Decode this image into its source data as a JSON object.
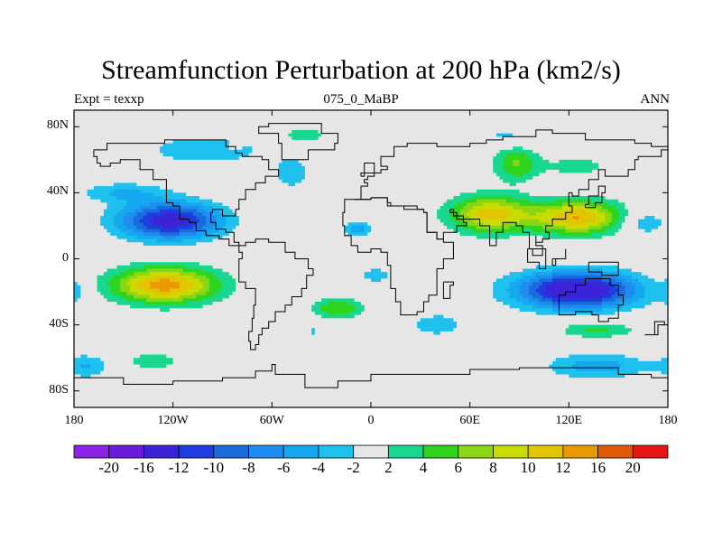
{
  "chart_data": {
    "type": "heatmap",
    "title": "Streamfunction Perturbation at 200 hPa (km2/s)",
    "subtitle_left": "Expt = texxp",
    "subtitle_center": "075_0_MaBP",
    "subtitle_right": "ANN",
    "xlim": [
      -180,
      180
    ],
    "ylim": [
      -90,
      90
    ],
    "x_ticks": [
      {
        "value": -180,
        "label": "180"
      },
      {
        "value": -120,
        "label": "120W"
      },
      {
        "value": -60,
        "label": "60W"
      },
      {
        "value": 0,
        "label": "0"
      },
      {
        "value": 60,
        "label": "60E"
      },
      {
        "value": 120,
        "label": "120E"
      },
      {
        "value": 180,
        "label": "180"
      }
    ],
    "y_ticks": [
      {
        "value": 80,
        "label": "80N"
      },
      {
        "value": 40,
        "label": "40N"
      },
      {
        "value": 0,
        "label": "0"
      },
      {
        "value": -40,
        "label": "40S"
      },
      {
        "value": -80,
        "label": "80S"
      }
    ],
    "colorbar": {
      "labels": [
        "-20",
        "-16",
        "-12",
        "-10",
        "-8",
        "-6",
        "-4",
        "-2",
        "2",
        "4",
        "6",
        "8",
        "10",
        "12",
        "16",
        "20"
      ],
      "colors": [
        "#8a24e6",
        "#6a1ad8",
        "#3b24d8",
        "#1f3ce0",
        "#1a6cdc",
        "#1e8cf0",
        "#14a8f0",
        "#1ec0ee",
        "#e6e6e6",
        "#18d890",
        "#2ed41e",
        "#8ad614",
        "#c8dc00",
        "#e2c400",
        "#e89a00",
        "#e05a08",
        "#e61616"
      ]
    },
    "features": [
      {
        "lon": -122,
        "lat": 23,
        "slon": 30,
        "slat": 11,
        "amp": -14
      },
      {
        "lon": -150,
        "lat": 40,
        "slon": 26,
        "slat": 6,
        "amp": -4
      },
      {
        "lon": -100,
        "lat": 66,
        "slon": 35,
        "slat": 8,
        "amp": -4
      },
      {
        "lon": -48,
        "lat": 52,
        "slon": 10,
        "slat": 9,
        "amp": -4
      },
      {
        "lon": -8,
        "lat": 18,
        "slon": 9,
        "slat": 5,
        "amp": -5
      },
      {
        "lon": 3,
        "lat": -10,
        "slon": 9,
        "slat": 4,
        "amp": -4
      },
      {
        "lon": -35,
        "lat": -44,
        "slon": 5,
        "slat": 3,
        "amp": -2.6
      },
      {
        "lon": 165,
        "lat": 22,
        "slon": 14,
        "slat": 8,
        "amp": -4
      },
      {
        "lon": 125,
        "lat": -19,
        "slon": 36,
        "slat": 11,
        "amp": -16
      },
      {
        "lon": 137,
        "lat": -65,
        "slon": 30,
        "slat": 8,
        "amp": -5
      },
      {
        "lon": -172,
        "lat": -65,
        "slon": 14,
        "slat": 7,
        "amp": -4
      },
      {
        "lon": 85,
        "lat": 74,
        "slon": 25,
        "slat": 7,
        "amp": -2.6
      },
      {
        "lon": -180,
        "lat": -20,
        "slon": 5,
        "slat": 8,
        "amp": -3
      },
      {
        "lon": -125,
        "lat": -16,
        "slon": 32,
        "slat": 11,
        "amp": 13
      },
      {
        "lon": -20,
        "lat": -30,
        "slon": 15,
        "slat": 6,
        "amp": 6
      },
      {
        "lon": 72,
        "lat": 27,
        "slon": 24,
        "slat": 11,
        "amp": 11
      },
      {
        "lon": 125,
        "lat": 25,
        "slon": 28,
        "slat": 10,
        "amp": 12
      },
      {
        "lon": 88,
        "lat": 58,
        "slon": 14,
        "slat": 11,
        "amp": 6
      },
      {
        "lon": 125,
        "lat": 56,
        "slon": 22,
        "slat": 6,
        "amp": 3
      },
      {
        "lon": -40,
        "lat": 75,
        "slon": 16,
        "slat": 6,
        "amp": 3
      },
      {
        "lon": -132,
        "lat": -62,
        "slon": 21,
        "slat": 6,
        "amp": 3
      },
      {
        "lon": 137,
        "lat": -43,
        "slon": 23,
        "slat": 5,
        "amp": 4.5
      },
      {
        "lon": -82,
        "lat": 68,
        "slon": 4,
        "slat": 3,
        "amp": 2.6
      },
      {
        "lon": 40,
        "lat": -40,
        "slon": 24,
        "slat": 10,
        "amp": -2.6
      }
    ]
  }
}
